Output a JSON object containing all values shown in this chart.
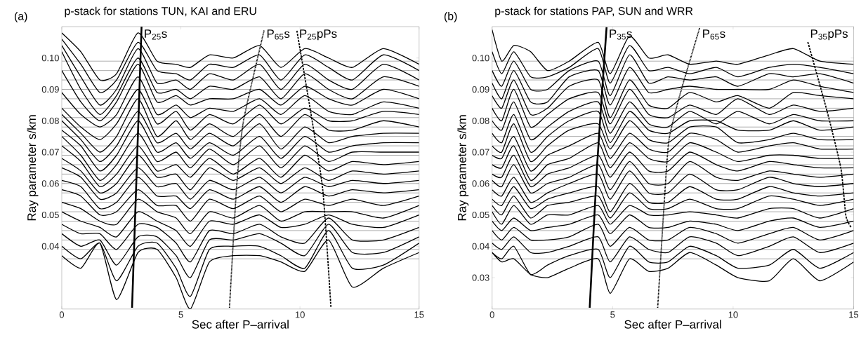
{
  "chart_data": [
    {
      "type": "line",
      "title": "p-stack for stations TUN, KAI and ERU",
      "xlabel": "Sec after P–arrival",
      "ylabel": "Ray parameter s/km",
      "x": [
        0,
        0.8,
        1.6,
        2.3,
        3.2,
        4,
        4.8,
        5.4,
        6.2,
        7.2,
        8.3,
        9.2,
        10.2,
        11.2,
        12.2,
        13.5,
        15
      ],
      "xlim": [
        0,
        15
      ],
      "ylim": [
        0.02,
        0.11
      ],
      "xticks": [
        0,
        5,
        10,
        15
      ],
      "yticks": [
        0.04,
        0.05,
        0.06,
        0.07,
        0.08,
        0.09,
        {
          "value": 0.1,
          "label": "0.10"
        }
      ],
      "series": [
        {
          "color": "#000000",
          "values": [
            0.108,
            0.102,
            0.093,
            0.095,
            0.108,
            0.099,
            0.098,
            0.097,
            0.101,
            0.1,
            0.104,
            0.097,
            0.103,
            0.1,
            0.097,
            0.103,
            0.098
          ]
        },
        {
          "color": "#000000",
          "values": [
            0.106,
            0.098,
            0.089,
            0.093,
            0.105,
            0.096,
            0.095,
            0.093,
            0.098,
            0.097,
            0.101,
            0.093,
            0.101,
            0.097,
            0.093,
            0.101,
            0.096
          ]
        },
        {
          "color": "#000000",
          "values": [
            0.104,
            0.094,
            0.085,
            0.09,
            0.103,
            0.092,
            0.093,
            0.09,
            0.095,
            0.093,
            0.098,
            0.09,
            0.098,
            0.093,
            0.09,
            0.098,
            0.093
          ]
        },
        {
          "color": "#000000",
          "values": [
            0.102,
            0.09,
            0.082,
            0.088,
            0.1,
            0.089,
            0.09,
            0.087,
            0.091,
            0.09,
            0.094,
            0.087,
            0.095,
            0.09,
            0.087,
            0.094,
            0.091
          ]
        },
        {
          "color": "#000000",
          "values": [
            0.096,
            0.086,
            0.08,
            0.086,
            0.098,
            0.086,
            0.088,
            0.085,
            0.087,
            0.087,
            0.09,
            0.085,
            0.091,
            0.087,
            0.085,
            0.09,
            0.087
          ]
        },
        {
          "color": "#000000",
          "values": [
            0.089,
            0.082,
            0.078,
            0.082,
            0.094,
            0.082,
            0.085,
            0.081,
            0.084,
            0.083,
            0.087,
            0.082,
            0.088,
            0.083,
            0.082,
            0.086,
            0.084
          ]
        },
        {
          "color": "#000000",
          "values": [
            0.084,
            0.078,
            0.074,
            0.079,
            0.09,
            0.079,
            0.083,
            0.077,
            0.082,
            0.079,
            0.085,
            0.079,
            0.084,
            0.08,
            0.08,
            0.083,
            0.082
          ]
        },
        {
          "color": "#000000",
          "values": [
            0.082,
            0.076,
            0.07,
            0.075,
            0.087,
            0.075,
            0.08,
            0.074,
            0.079,
            0.075,
            0.082,
            0.075,
            0.082,
            0.077,
            0.077,
            0.08,
            0.078
          ]
        },
        {
          "color": "#000000",
          "values": [
            0.08,
            0.074,
            0.067,
            0.072,
            0.083,
            0.073,
            0.076,
            0.071,
            0.076,
            0.072,
            0.079,
            0.071,
            0.078,
            0.073,
            0.075,
            0.076,
            0.076
          ]
        },
        {
          "color": "#000000",
          "values": [
            0.077,
            0.072,
            0.064,
            0.069,
            0.08,
            0.07,
            0.073,
            0.068,
            0.073,
            0.069,
            0.075,
            0.068,
            0.075,
            0.07,
            0.072,
            0.073,
            0.073
          ]
        },
        {
          "color": "#000000",
          "values": [
            0.075,
            0.069,
            0.061,
            0.066,
            0.076,
            0.067,
            0.07,
            0.065,
            0.071,
            0.066,
            0.072,
            0.065,
            0.072,
            0.067,
            0.07,
            0.07,
            0.07
          ]
        },
        {
          "color": "#000000",
          "values": [
            0.072,
            0.067,
            0.059,
            0.063,
            0.072,
            0.064,
            0.066,
            0.062,
            0.068,
            0.063,
            0.068,
            0.062,
            0.069,
            0.064,
            0.067,
            0.066,
            0.067
          ]
        },
        {
          "color": "#000000",
          "values": [
            0.068,
            0.064,
            0.057,
            0.06,
            0.069,
            0.062,
            0.063,
            0.058,
            0.065,
            0.061,
            0.065,
            0.06,
            0.065,
            0.061,
            0.064,
            0.063,
            0.064
          ]
        },
        {
          "color": "#000000",
          "values": [
            0.065,
            0.062,
            0.055,
            0.057,
            0.065,
            0.059,
            0.06,
            0.055,
            0.061,
            0.058,
            0.062,
            0.057,
            0.062,
            0.059,
            0.061,
            0.06,
            0.061
          ]
        },
        {
          "color": "#000000",
          "values": [
            0.061,
            0.059,
            0.052,
            0.054,
            0.062,
            0.056,
            0.056,
            0.052,
            0.058,
            0.055,
            0.059,
            0.054,
            0.059,
            0.056,
            0.058,
            0.057,
            0.058
          ]
        },
        {
          "color": "#000000",
          "values": [
            0.058,
            0.056,
            0.05,
            0.051,
            0.058,
            0.053,
            0.053,
            0.048,
            0.055,
            0.052,
            0.056,
            0.051,
            0.055,
            0.053,
            0.055,
            0.053,
            0.056
          ]
        },
        {
          "color": "#000000",
          "values": [
            0.054,
            0.052,
            0.048,
            0.047,
            0.055,
            0.051,
            0.049,
            0.044,
            0.051,
            0.049,
            0.053,
            0.048,
            0.051,
            0.051,
            0.051,
            0.049,
            0.053
          ]
        },
        {
          "color": "#000000",
          "values": [
            0.051,
            0.048,
            0.046,
            0.043,
            0.051,
            0.048,
            0.045,
            0.04,
            0.048,
            0.047,
            0.05,
            0.046,
            0.047,
            0.05,
            0.047,
            0.046,
            0.05
          ]
        },
        {
          "color": "#000000",
          "values": [
            0.047,
            0.044,
            0.044,
            0.039,
            0.047,
            0.046,
            0.041,
            0.035,
            0.045,
            0.044,
            0.047,
            0.043,
            0.041,
            0.049,
            0.042,
            0.042,
            0.046
          ]
        },
        {
          "color": "#000000",
          "values": [
            0.044,
            0.04,
            0.042,
            0.034,
            0.043,
            0.043,
            0.037,
            0.03,
            0.042,
            0.042,
            0.044,
            0.041,
            0.037,
            0.047,
            0.038,
            0.038,
            0.043
          ]
        },
        {
          "color": "#000000",
          "values": [
            0.04,
            0.036,
            0.041,
            0.029,
            0.04,
            0.041,
            0.033,
            0.024,
            0.039,
            0.04,
            0.04,
            0.037,
            0.033,
            0.045,
            0.033,
            0.034,
            0.041
          ]
        },
        {
          "color": "#000000",
          "values": [
            0.037,
            0.033,
            0.041,
            0.023,
            0.038,
            0.039,
            0.03,
            0.02,
            0.035,
            0.037,
            0.037,
            0.035,
            0.032,
            0.042,
            0.027,
            0.033,
            0.038
          ]
        },
        {
          "color": "#000000",
          "line_style": "solid",
          "x": [
            2.95,
            3.35
          ],
          "values": [
            0.0204,
            0.11
          ]
        },
        {
          "color": "#000000",
          "line_style": "dotted",
          "x": [
            7.04,
            7.34,
            7.63,
            8.5
          ],
          "values": [
            0.0204,
            0.059,
            0.08,
            0.109
          ]
        },
        {
          "color": "#000000",
          "line_style": "dashed",
          "x": [
            9.87,
            10.46,
            10.96,
            11.3
          ],
          "values": [
            0.1087,
            0.0823,
            0.0577,
            0.0204
          ]
        }
      ],
      "ref_lines": [
        {
          "axis": "y",
          "value": 0.099,
          "color": "#999999"
        },
        {
          "axis": "y",
          "value": 0.096,
          "color": "#999999"
        },
        {
          "axis": "y",
          "value": 0.093,
          "color": "#999999"
        },
        {
          "axis": "y",
          "value": 0.09,
          "color": "#999999"
        },
        {
          "axis": "y",
          "value": 0.087,
          "color": "#999999"
        },
        {
          "axis": "y",
          "value": 0.084,
          "color": "#999999"
        },
        {
          "axis": "y",
          "value": 0.081,
          "color": "#999999"
        },
        {
          "axis": "y",
          "value": 0.078,
          "color": "#999999"
        },
        {
          "axis": "y",
          "value": 0.075,
          "color": "#999999"
        },
        {
          "axis": "y",
          "value": 0.072,
          "color": "#999999"
        },
        {
          "axis": "y",
          "value": 0.069,
          "color": "#999999"
        },
        {
          "axis": "y",
          "value": 0.066,
          "color": "#999999"
        },
        {
          "axis": "y",
          "value": 0.063,
          "color": "#999999"
        },
        {
          "axis": "y",
          "value": 0.06,
          "color": "#999999"
        },
        {
          "axis": "y",
          "value": 0.057,
          "color": "#999999"
        },
        {
          "axis": "y",
          "value": 0.054,
          "color": "#999999"
        },
        {
          "axis": "y",
          "value": 0.051,
          "color": "#999999"
        },
        {
          "axis": "y",
          "value": 0.048,
          "color": "#999999"
        },
        {
          "axis": "y",
          "value": 0.045,
          "color": "#999999"
        },
        {
          "axis": "y",
          "value": 0.042,
          "color": "#999999"
        },
        {
          "axis": "y",
          "value": 0.039,
          "color": "#999999"
        },
        {
          "axis": "y",
          "value": 0.036,
          "color": "#999999"
        }
      ],
      "annotations": [
        "(a)",
        "P$_{25}$s",
        "P$_{65}$s",
        "P$_{25}$pPs"
      ]
    },
    {
      "type": "line",
      "title": "p-stack for stations PAP, SUN and WRR",
      "xlabel": "Sec after P–arrival",
      "ylabel": "Ray parameter s/km",
      "x": [
        0,
        0.4,
        0.9,
        1.6,
        2.3,
        3.2,
        4.4,
        4.9,
        5.7,
        6.5,
        7.3,
        8.2,
        9.3,
        10.2,
        11.5,
        12.5,
        13.6,
        15
      ],
      "xlim": [
        0,
        15
      ],
      "ylim": [
        0.02,
        0.11
      ],
      "xticks": [
        0,
        5,
        10,
        15
      ],
      "yticks": [
        0.03,
        0.04,
        0.05,
        0.06,
        0.07,
        0.08,
        0.09,
        {
          "value": 0.1,
          "label": "0.10"
        }
      ],
      "series": [
        {
          "color": "#000000",
          "values": [
            0.109,
            0.099,
            0.104,
            0.102,
            0.096,
            0.099,
            0.105,
            0.095,
            0.107,
            0.1,
            0.101,
            0.098,
            0.099,
            0.098,
            0.101,
            0.103,
            0.099,
            0.098
          ]
        },
        {
          "color": "#000000",
          "values": [
            0.102,
            0.095,
            0.102,
            0.094,
            0.094,
            0.097,
            0.103,
            0.092,
            0.104,
            0.096,
            0.097,
            0.095,
            0.097,
            0.094,
            0.097,
            0.098,
            0.097,
            0.095
          ]
        },
        {
          "color": "#000000",
          "values": [
            0.096,
            0.091,
            0.099,
            0.09,
            0.09,
            0.096,
            0.099,
            0.088,
            0.101,
            0.092,
            0.094,
            0.093,
            0.094,
            0.091,
            0.095,
            0.094,
            0.095,
            0.092
          ]
        },
        {
          "color": "#000000",
          "values": [
            0.092,
            0.087,
            0.096,
            0.086,
            0.086,
            0.094,
            0.096,
            0.085,
            0.097,
            0.089,
            0.09,
            0.091,
            0.09,
            0.09,
            0.09,
            0.093,
            0.091,
            0.089
          ]
        },
        {
          "color": "#000000",
          "values": [
            0.088,
            0.084,
            0.093,
            0.082,
            0.084,
            0.091,
            0.093,
            0.081,
            0.093,
            0.085,
            0.084,
            0.089,
            0.086,
            0.088,
            0.084,
            0.089,
            0.088,
            0.087
          ]
        },
        {
          "color": "#000000",
          "values": [
            0.084,
            0.08,
            0.09,
            0.078,
            0.082,
            0.087,
            0.089,
            0.079,
            0.09,
            0.082,
            0.081,
            0.085,
            0.082,
            0.087,
            0.082,
            0.085,
            0.083,
            0.084
          ]
        },
        {
          "color": "#000000",
          "values": [
            0.08,
            0.077,
            0.086,
            0.074,
            0.078,
            0.083,
            0.086,
            0.076,
            0.086,
            0.079,
            0.078,
            0.083,
            0.079,
            0.083,
            0.079,
            0.082,
            0.08,
            0.08
          ]
        },
        {
          "color": "#000000",
          "values": [
            0.076,
            0.073,
            0.082,
            0.07,
            0.075,
            0.08,
            0.083,
            0.073,
            0.083,
            0.077,
            0.076,
            0.08,
            0.08,
            0.077,
            0.077,
            0.08,
            0.077,
            0.078
          ]
        },
        {
          "color": "#000000",
          "values": [
            0.072,
            0.07,
            0.079,
            0.067,
            0.072,
            0.077,
            0.079,
            0.071,
            0.08,
            0.074,
            0.073,
            0.078,
            0.078,
            0.073,
            0.074,
            0.076,
            0.074,
            0.074
          ]
        },
        {
          "color": "#000000",
          "values": [
            0.069,
            0.068,
            0.075,
            0.064,
            0.069,
            0.072,
            0.076,
            0.068,
            0.076,
            0.071,
            0.07,
            0.076,
            0.074,
            0.07,
            0.072,
            0.073,
            0.071,
            0.071
          ]
        },
        {
          "color": "#000000",
          "values": [
            0.066,
            0.065,
            0.072,
            0.061,
            0.066,
            0.068,
            0.073,
            0.065,
            0.073,
            0.068,
            0.067,
            0.073,
            0.07,
            0.067,
            0.069,
            0.069,
            0.068,
            0.068
          ]
        },
        {
          "color": "#000000",
          "values": [
            0.063,
            0.062,
            0.069,
            0.059,
            0.063,
            0.065,
            0.069,
            0.062,
            0.07,
            0.064,
            0.064,
            0.07,
            0.066,
            0.064,
            0.067,
            0.066,
            0.065,
            0.065
          ]
        },
        {
          "color": "#000000",
          "values": [
            0.061,
            0.059,
            0.066,
            0.057,
            0.06,
            0.062,
            0.066,
            0.058,
            0.067,
            0.06,
            0.06,
            0.067,
            0.062,
            0.061,
            0.064,
            0.063,
            0.062,
            0.063
          ]
        },
        {
          "color": "#000000",
          "values": [
            0.058,
            0.056,
            0.062,
            0.054,
            0.057,
            0.06,
            0.063,
            0.055,
            0.064,
            0.057,
            0.057,
            0.063,
            0.058,
            0.058,
            0.062,
            0.06,
            0.059,
            0.06
          ]
        },
        {
          "color": "#000000",
          "values": [
            0.055,
            0.053,
            0.059,
            0.052,
            0.055,
            0.057,
            0.059,
            0.051,
            0.06,
            0.054,
            0.054,
            0.059,
            0.055,
            0.055,
            0.059,
            0.057,
            0.056,
            0.057
          ]
        },
        {
          "color": "#000000",
          "values": [
            0.053,
            0.05,
            0.056,
            0.049,
            0.053,
            0.054,
            0.056,
            0.049,
            0.057,
            0.052,
            0.052,
            0.055,
            0.052,
            0.052,
            0.056,
            0.055,
            0.053,
            0.055
          ]
        },
        {
          "color": "#000000",
          "values": [
            0.051,
            0.047,
            0.053,
            0.047,
            0.05,
            0.05,
            0.053,
            0.047,
            0.053,
            0.05,
            0.05,
            0.051,
            0.05,
            0.049,
            0.052,
            0.052,
            0.049,
            0.052
          ]
        },
        {
          "color": "#000000",
          "values": [
            0.048,
            0.045,
            0.049,
            0.045,
            0.046,
            0.047,
            0.05,
            0.044,
            0.05,
            0.046,
            0.046,
            0.048,
            0.047,
            0.045,
            0.048,
            0.049,
            0.046,
            0.048
          ]
        },
        {
          "color": "#000000",
          "values": [
            0.045,
            0.042,
            0.046,
            0.042,
            0.042,
            0.043,
            0.047,
            0.04,
            0.046,
            0.042,
            0.042,
            0.046,
            0.044,
            0.041,
            0.044,
            0.046,
            0.042,
            0.045
          ]
        },
        {
          "color": "#000000",
          "values": [
            0.041,
            0.039,
            0.043,
            0.038,
            0.038,
            0.04,
            0.043,
            0.035,
            0.043,
            0.039,
            0.038,
            0.043,
            0.041,
            0.037,
            0.04,
            0.043,
            0.038,
            0.041
          ]
        },
        {
          "color": "#000000",
          "values": [
            0.038,
            0.036,
            0.04,
            0.031,
            0.034,
            0.037,
            0.039,
            0.03,
            0.04,
            0.035,
            0.035,
            0.04,
            0.037,
            0.033,
            0.034,
            0.039,
            0.033,
            0.038
          ]
        },
        {
          "color": "#000000",
          "values": [
            0.038,
            0.035,
            0.036,
            0.031,
            0.03,
            0.033,
            0.036,
            0.025,
            0.036,
            0.032,
            0.033,
            0.038,
            0.034,
            0.03,
            0.029,
            0.036,
            0.029,
            0.035
          ]
        },
        {
          "color": "#000000",
          "line_style": "solid",
          "x": [
            4.05,
            4.35,
            4.75
          ],
          "values": [
            0.0204,
            0.065,
            0.1098
          ]
        },
        {
          "color": "#000000",
          "line_style": "dotted",
          "x": [
            6.87,
            7.14,
            7.34,
            7.83,
            8.62
          ],
          "values": [
            0.0204,
            0.0537,
            0.074,
            0.0893,
            0.1098
          ]
        },
        {
          "color": "#000000",
          "line_style": "dashed",
          "x": [
            13.1,
            13.9,
            14.47,
            14.68,
            14.9
          ],
          "values": [
            0.1051,
            0.083,
            0.0649,
            0.0497,
            0.046
          ]
        }
      ],
      "ref_lines": [
        {
          "axis": "y",
          "value": 0.099,
          "color": "#999999"
        },
        {
          "axis": "y",
          "value": 0.096,
          "color": "#999999"
        },
        {
          "axis": "y",
          "value": 0.093,
          "color": "#999999"
        },
        {
          "axis": "y",
          "value": 0.09,
          "color": "#999999"
        },
        {
          "axis": "y",
          "value": 0.087,
          "color": "#999999"
        },
        {
          "axis": "y",
          "value": 0.084,
          "color": "#999999"
        },
        {
          "axis": "y",
          "value": 0.081,
          "color": "#999999"
        },
        {
          "axis": "y",
          "value": 0.078,
          "color": "#999999"
        },
        {
          "axis": "y",
          "value": 0.075,
          "color": "#999999"
        },
        {
          "axis": "y",
          "value": 0.072,
          "color": "#999999"
        },
        {
          "axis": "y",
          "value": 0.069,
          "color": "#999999"
        },
        {
          "axis": "y",
          "value": 0.066,
          "color": "#999999"
        },
        {
          "axis": "y",
          "value": 0.063,
          "color": "#999999"
        },
        {
          "axis": "y",
          "value": 0.06,
          "color": "#999999"
        },
        {
          "axis": "y",
          "value": 0.057,
          "color": "#999999"
        },
        {
          "axis": "y",
          "value": 0.054,
          "color": "#999999"
        },
        {
          "axis": "y",
          "value": 0.051,
          "color": "#999999"
        },
        {
          "axis": "y",
          "value": 0.048,
          "color": "#999999"
        },
        {
          "axis": "y",
          "value": 0.045,
          "color": "#999999"
        },
        {
          "axis": "y",
          "value": 0.042,
          "color": "#999999"
        },
        {
          "axis": "y",
          "value": 0.039,
          "color": "#999999"
        },
        {
          "axis": "y",
          "value": 0.036,
          "color": "#999999"
        }
      ],
      "annotations": [
        "(b)",
        "P$_{35}$s",
        "P$_{65}$s",
        "P$_{35}$pPs"
      ]
    }
  ]
}
